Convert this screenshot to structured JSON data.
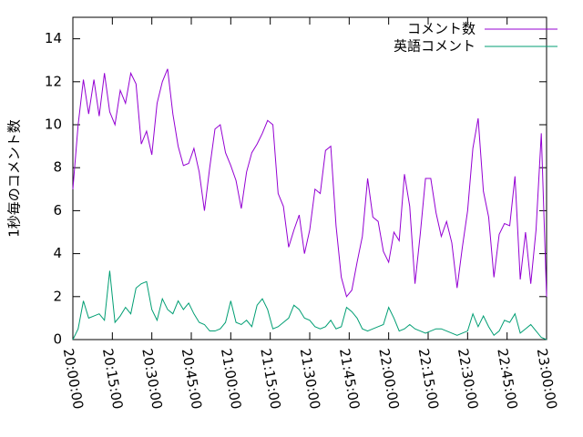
{
  "chart_data": {
    "type": "line",
    "ylabel": "1秒毎のコメント数",
    "x": [
      "20:00:00",
      "20:02:00",
      "20:04:00",
      "20:06:00",
      "20:08:00",
      "20:10:00",
      "20:12:00",
      "20:14:00",
      "20:16:00",
      "20:18:00",
      "20:20:00",
      "20:22:00",
      "20:24:00",
      "20:26:00",
      "20:28:00",
      "20:30:00",
      "20:32:00",
      "20:34:00",
      "20:36:00",
      "20:38:00",
      "20:40:00",
      "20:42:00",
      "20:44:00",
      "20:46:00",
      "20:48:00",
      "20:50:00",
      "20:52:00",
      "20:54:00",
      "20:56:00",
      "20:58:00",
      "21:00:00",
      "21:02:00",
      "21:04:00",
      "21:06:00",
      "21:08:00",
      "21:10:00",
      "21:12:00",
      "21:14:00",
      "21:16:00",
      "21:18:00",
      "21:20:00",
      "21:22:00",
      "21:24:00",
      "21:26:00",
      "21:28:00",
      "21:30:00",
      "21:32:00",
      "21:34:00",
      "21:36:00",
      "21:38:00",
      "21:40:00",
      "21:42:00",
      "21:44:00",
      "21:46:00",
      "21:48:00",
      "21:50:00",
      "21:52:00",
      "21:54:00",
      "21:56:00",
      "21:58:00",
      "22:00:00",
      "22:02:00",
      "22:04:00",
      "22:06:00",
      "22:08:00",
      "22:10:00",
      "22:12:00",
      "22:14:00",
      "22:16:00",
      "22:18:00",
      "22:20:00",
      "22:22:00",
      "22:24:00",
      "22:26:00",
      "22:28:00",
      "22:30:00",
      "22:32:00",
      "22:34:00",
      "22:36:00",
      "22:38:00",
      "22:40:00",
      "22:42:00",
      "22:44:00",
      "22:46:00",
      "22:48:00",
      "22:50:00",
      "22:52:00",
      "22:54:00",
      "22:56:00",
      "22:58:00",
      "23:00:00"
    ],
    "series": [
      {
        "name": "コメント数",
        "color": "#9400d3",
        "values": [
          7,
          10,
          12.1,
          10.5,
          12.1,
          10.4,
          12.4,
          10.6,
          10,
          11.6,
          11,
          12.4,
          11.9,
          9.1,
          9.7,
          8.6,
          11,
          12,
          12.6,
          10.5,
          9,
          8.1,
          8.2,
          8.9,
          7.8,
          6,
          8,
          9.8,
          10,
          8.7,
          8.1,
          7.4,
          6.1,
          7.8,
          8.7,
          9.1,
          9.6,
          10.2,
          10,
          6.8,
          6.2,
          4.3,
          5.1,
          5.8,
          4,
          5.1,
          7,
          6.8,
          8.8,
          9,
          5.3,
          2.9,
          2,
          2.3,
          3.6,
          4.8,
          7.5,
          5.7,
          5.5,
          4.1,
          3.6,
          5,
          4.6,
          7.7,
          6.2,
          2.6,
          4.9,
          7.5,
          7.5,
          5.9,
          4.8,
          5.5,
          4.5,
          2.4,
          4.3,
          6,
          8.9,
          10.3,
          6.9,
          5.7,
          2.9,
          4.9,
          5.4,
          5.3,
          7.6,
          2.8,
          5,
          2.6,
          5.1,
          9.6,
          2
        ]
      },
      {
        "name": "英語コメント",
        "color": "#009e73",
        "values": [
          0,
          0.5,
          1.8,
          1,
          1.1,
          1.2,
          0.9,
          3.2,
          0.8,
          1.1,
          1.5,
          1.2,
          2.4,
          2.6,
          2.7,
          1.4,
          0.9,
          1.9,
          1.4,
          1.2,
          1.8,
          1.4,
          1.7,
          1.2,
          0.8,
          0.7,
          0.4,
          0.4,
          0.5,
          0.8,
          1.8,
          0.8,
          0.7,
          0.9,
          0.6,
          1.6,
          1.9,
          1.4,
          0.5,
          0.6,
          0.8,
          1,
          1.6,
          1.4,
          1,
          0.9,
          0.6,
          0.5,
          0.6,
          0.9,
          0.5,
          0.6,
          1.5,
          1.3,
          1,
          0.5,
          0.4,
          0.5,
          0.6,
          0.7,
          1.5,
          1,
          0.4,
          0.5,
          0.7,
          0.5,
          0.4,
          0.3,
          0.4,
          0.5,
          0.5,
          0.4,
          0.3,
          0.2,
          0.3,
          0.4,
          1.2,
          0.6,
          1.1,
          0.6,
          0.2,
          0.4,
          0.9,
          0.8,
          1.2,
          0.3,
          0.5,
          0.7,
          0.4,
          0.1,
          0
        ]
      }
    ],
    "xlim": [
      "20:00:00",
      "23:00:00"
    ],
    "xticks": [
      "20:00:00",
      "20:15:00",
      "20:30:00",
      "20:45:00",
      "21:00:00",
      "21:15:00",
      "21:30:00",
      "21:45:00",
      "22:00:00",
      "22:15:00",
      "22:30:00",
      "22:45:00",
      "23:00:00"
    ],
    "ylim": [
      0,
      15
    ],
    "yticks": [
      0,
      2,
      4,
      6,
      8,
      10,
      12,
      14
    ],
    "legend": "top-right"
  }
}
